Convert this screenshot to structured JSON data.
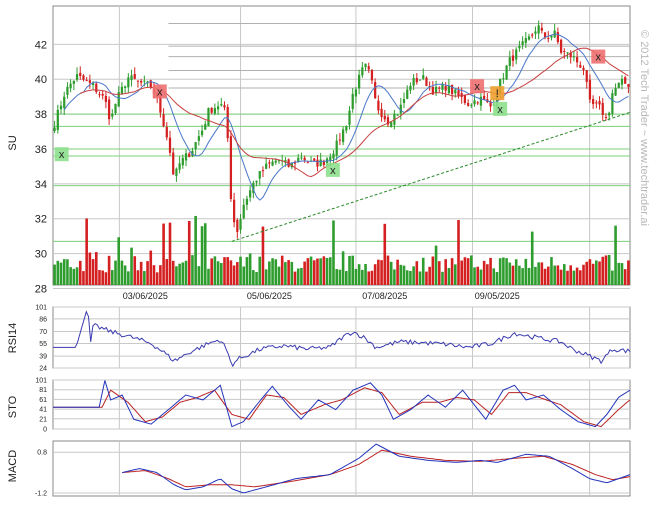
{
  "chart_data": {
    "type": "candlestick",
    "symbol": "SU",
    "watermark": "© 2012 Tech Trader ~ www.techtrader.ai",
    "date_ticks": [
      "03/06/2025",
      "05/06/2025",
      "07/08/2025",
      "09/05/2025"
    ],
    "colors": {
      "up": "#2e9d2e",
      "down": "#d42020",
      "ma_fast": "#4a78c8",
      "ma_slow": "#c84040",
      "grid": "#c8c8c8",
      "support": "#7bcf7b",
      "resistance": "#b0b0b0",
      "trendline": "#2a8a2a",
      "signal_sell": "#f07070",
      "signal_buy": "#8ee08e",
      "signal_alert": "#f0a030",
      "rsi": "#3a3ab0",
      "osc_fast": "#2233bb",
      "osc_slow": "#bb2222"
    },
    "price_panel": {
      "ylim": [
        28.2,
        44.2
      ],
      "yticks": [
        "42",
        "40",
        "38",
        "36",
        "34",
        "32",
        "30",
        "28"
      ],
      "ylabel": "SU",
      "volume_range": [
        0,
        1
      ],
      "support_levels": [
        38.0,
        37.3,
        36.0,
        35.6,
        33.9,
        30.7
      ],
      "resistance_levels": [
        43.2,
        41.9,
        41.3,
        40.5,
        39.5
      ],
      "trendline": {
        "start": [
          0.31,
          30.7
        ],
        "end": [
          1.0,
          38.1
        ]
      },
      "signals": [
        {
          "t": 0.015,
          "label": "x",
          "kind": "buy",
          "price": 35.7
        },
        {
          "t": 0.185,
          "label": "x",
          "kind": "sell",
          "price": 39.3
        },
        {
          "t": 0.485,
          "label": "x",
          "kind": "buy",
          "price": 34.8
        },
        {
          "t": 0.735,
          "label": "x",
          "kind": "sell",
          "price": 39.6
        },
        {
          "t": 0.77,
          "label": "!",
          "kind": "alert",
          "price": 39.2
        },
        {
          "t": 0.775,
          "label": "x",
          "kind": "buy",
          "price": 38.3
        },
        {
          "t": 0.945,
          "label": "x",
          "kind": "sell",
          "price": 41.3
        }
      ],
      "price_path": [
        [
          0.0,
          37.2
        ],
        [
          0.02,
          39.2
        ],
        [
          0.04,
          40.2
        ],
        [
          0.07,
          39.6
        ],
        [
          0.09,
          38.8
        ],
        [
          0.1,
          37.6
        ],
        [
          0.11,
          38.8
        ],
        [
          0.13,
          40.1
        ],
        [
          0.15,
          39.8
        ],
        [
          0.17,
          39.6
        ],
        [
          0.18,
          38.9
        ],
        [
          0.19,
          37.7
        ],
        [
          0.2,
          36.4
        ],
        [
          0.21,
          34.3
        ],
        [
          0.22,
          35.2
        ],
        [
          0.24,
          35.9
        ],
        [
          0.26,
          37.2
        ],
        [
          0.27,
          38.2
        ],
        [
          0.29,
          38.6
        ],
        [
          0.3,
          38.0
        ],
        [
          0.305,
          35.5
        ],
        [
          0.31,
          32.2
        ],
        [
          0.32,
          31.3
        ],
        [
          0.33,
          32.8
        ],
        [
          0.35,
          34.2
        ],
        [
          0.37,
          35.0
        ],
        [
          0.39,
          35.4
        ],
        [
          0.41,
          35.0
        ],
        [
          0.43,
          35.6
        ],
        [
          0.45,
          35.1
        ],
        [
          0.47,
          35.3
        ],
        [
          0.49,
          36.1
        ],
        [
          0.51,
          37.6
        ],
        [
          0.52,
          39.2
        ],
        [
          0.54,
          40.8
        ],
        [
          0.55,
          40.2
        ],
        [
          0.56,
          38.5
        ],
        [
          0.58,
          37.6
        ],
        [
          0.6,
          38.2
        ],
        [
          0.62,
          39.8
        ],
        [
          0.64,
          40.1
        ],
        [
          0.66,
          39.3
        ],
        [
          0.68,
          39.6
        ],
        [
          0.7,
          39.1
        ],
        [
          0.72,
          38.6
        ],
        [
          0.74,
          38.9
        ],
        [
          0.76,
          38.4
        ],
        [
          0.77,
          39.4
        ],
        [
          0.79,
          41.0
        ],
        [
          0.81,
          41.8
        ],
        [
          0.83,
          42.5
        ],
        [
          0.84,
          43.1
        ],
        [
          0.85,
          42.4
        ],
        [
          0.87,
          42.6
        ],
        [
          0.88,
          41.6
        ],
        [
          0.9,
          41.3
        ],
        [
          0.92,
          40.6
        ],
        [
          0.93,
          38.6
        ],
        [
          0.95,
          38.3
        ],
        [
          0.96,
          37.6
        ],
        [
          0.97,
          39.3
        ],
        [
          0.985,
          39.8
        ],
        [
          1.0,
          39.7
        ]
      ]
    },
    "rsi_panel": {
      "ylabel": "RSI14",
      "yticks": [
        "101",
        "86",
        "70",
        "55",
        "39",
        "24"
      ],
      "ylim": [
        24,
        101
      ],
      "path": [
        [
          0.0,
          50
        ],
        [
          0.04,
          50
        ],
        [
          0.06,
          101
        ],
        [
          0.065,
          55
        ],
        [
          0.07,
          78
        ],
        [
          0.1,
          70
        ],
        [
          0.14,
          62
        ],
        [
          0.17,
          55
        ],
        [
          0.19,
          45
        ],
        [
          0.21,
          33
        ],
        [
          0.24,
          45
        ],
        [
          0.27,
          55
        ],
        [
          0.29,
          60
        ],
        [
          0.3,
          48
        ],
        [
          0.31,
          28
        ],
        [
          0.32,
          35
        ],
        [
          0.36,
          48
        ],
        [
          0.4,
          52
        ],
        [
          0.44,
          48
        ],
        [
          0.48,
          50
        ],
        [
          0.5,
          62
        ],
        [
          0.52,
          70
        ],
        [
          0.54,
          62
        ],
        [
          0.56,
          50
        ],
        [
          0.6,
          57
        ],
        [
          0.64,
          56
        ],
        [
          0.68,
          54
        ],
        [
          0.72,
          50
        ],
        [
          0.76,
          55
        ],
        [
          0.8,
          68
        ],
        [
          0.84,
          62
        ],
        [
          0.88,
          57
        ],
        [
          0.9,
          48
        ],
        [
          0.93,
          39
        ],
        [
          0.95,
          33
        ],
        [
          0.97,
          48
        ],
        [
          1.0,
          45
        ]
      ]
    },
    "sto_panel": {
      "ylabel": "STO",
      "yticks": [
        "101",
        "81",
        "61",
        "41",
        "21",
        "0"
      ],
      "ylim": [
        0,
        101
      ],
      "k_path": [
        [
          0.0,
          45
        ],
        [
          0.08,
          45
        ],
        [
          0.09,
          100
        ],
        [
          0.1,
          60
        ],
        [
          0.12,
          70
        ],
        [
          0.14,
          20
        ],
        [
          0.17,
          10
        ],
        [
          0.2,
          40
        ],
        [
          0.23,
          70
        ],
        [
          0.26,
          60
        ],
        [
          0.29,
          90
        ],
        [
          0.31,
          5
        ],
        [
          0.33,
          15
        ],
        [
          0.36,
          60
        ],
        [
          0.38,
          88
        ],
        [
          0.41,
          45
        ],
        [
          0.43,
          20
        ],
        [
          0.46,
          60
        ],
        [
          0.49,
          40
        ],
        [
          0.52,
          80
        ],
        [
          0.55,
          95
        ],
        [
          0.57,
          70
        ],
        [
          0.59,
          20
        ],
        [
          0.62,
          40
        ],
        [
          0.65,
          70
        ],
        [
          0.68,
          45
        ],
        [
          0.71,
          80
        ],
        [
          0.73,
          50
        ],
        [
          0.75,
          20
        ],
        [
          0.78,
          80
        ],
        [
          0.8,
          90
        ],
        [
          0.82,
          60
        ],
        [
          0.85,
          70
        ],
        [
          0.88,
          40
        ],
        [
          0.91,
          15
        ],
        [
          0.94,
          5
        ],
        [
          0.96,
          30
        ],
        [
          0.98,
          65
        ],
        [
          1.0,
          80
        ]
      ],
      "d_path": [
        [
          0.0,
          45
        ],
        [
          0.085,
          45
        ],
        [
          0.1,
          80
        ],
        [
          0.13,
          55
        ],
        [
          0.16,
          15
        ],
        [
          0.19,
          25
        ],
        [
          0.22,
          55
        ],
        [
          0.25,
          65
        ],
        [
          0.28,
          80
        ],
        [
          0.31,
          30
        ],
        [
          0.34,
          20
        ],
        [
          0.37,
          70
        ],
        [
          0.4,
          65
        ],
        [
          0.43,
          30
        ],
        [
          0.47,
          50
        ],
        [
          0.5,
          60
        ],
        [
          0.54,
          85
        ],
        [
          0.57,
          75
        ],
        [
          0.6,
          30
        ],
        [
          0.64,
          55
        ],
        [
          0.67,
          55
        ],
        [
          0.7,
          65
        ],
        [
          0.73,
          60
        ],
        [
          0.76,
          30
        ],
        [
          0.79,
          75
        ],
        [
          0.82,
          75
        ],
        [
          0.85,
          62
        ],
        [
          0.88,
          50
        ],
        [
          0.92,
          15
        ],
        [
          0.95,
          5
        ],
        [
          0.98,
          40
        ],
        [
          1.0,
          60
        ]
      ]
    },
    "macd_panel": {
      "ylabel": "MACD",
      "yticks": [
        "0.8",
        "-1.2"
      ],
      "ylim": [
        -1.35,
        1.35
      ],
      "macd_path": [
        [
          0.12,
          -0.2
        ],
        [
          0.15,
          0.0
        ],
        [
          0.18,
          -0.2
        ],
        [
          0.21,
          -0.8
        ],
        [
          0.23,
          -1.05
        ],
        [
          0.26,
          -0.9
        ],
        [
          0.29,
          -0.5
        ],
        [
          0.31,
          -1.0
        ],
        [
          0.33,
          -1.2
        ],
        [
          0.37,
          -0.9
        ],
        [
          0.42,
          -0.5
        ],
        [
          0.48,
          -0.3
        ],
        [
          0.53,
          0.5
        ],
        [
          0.56,
          1.2
        ],
        [
          0.6,
          0.6
        ],
        [
          0.65,
          0.4
        ],
        [
          0.7,
          0.3
        ],
        [
          0.74,
          0.4
        ],
        [
          0.77,
          0.3
        ],
        [
          0.82,
          0.7
        ],
        [
          0.86,
          0.6
        ],
        [
          0.9,
          0.0
        ],
        [
          0.93,
          -0.5
        ],
        [
          0.96,
          -0.7
        ],
        [
          1.0,
          -0.3
        ]
      ],
      "signal_path": [
        [
          0.12,
          -0.2
        ],
        [
          0.16,
          -0.1
        ],
        [
          0.2,
          -0.5
        ],
        [
          0.23,
          -0.9
        ],
        [
          0.27,
          -0.8
        ],
        [
          0.31,
          -0.8
        ],
        [
          0.35,
          -0.9
        ],
        [
          0.42,
          -0.6
        ],
        [
          0.48,
          -0.3
        ],
        [
          0.53,
          0.2
        ],
        [
          0.57,
          0.9
        ],
        [
          0.62,
          0.6
        ],
        [
          0.68,
          0.4
        ],
        [
          0.74,
          0.35
        ],
        [
          0.8,
          0.5
        ],
        [
          0.85,
          0.6
        ],
        [
          0.9,
          0.2
        ],
        [
          0.94,
          -0.3
        ],
        [
          0.97,
          -0.55
        ],
        [
          1.0,
          -0.4
        ]
      ]
    }
  }
}
